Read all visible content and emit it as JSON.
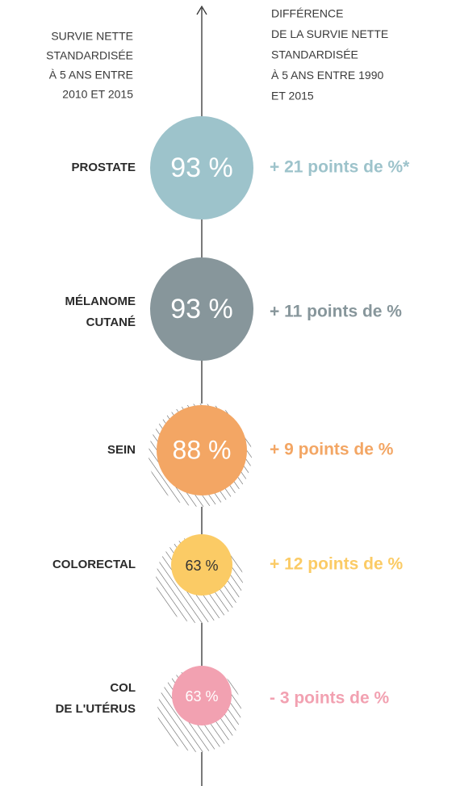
{
  "header": {
    "left": [
      "SURVIE NETTE",
      "STANDARDISÉE",
      "À 5 ANS ENTRE",
      "2010 ET 2015"
    ],
    "right": [
      "DIFFÉRENCE",
      "DE LA SURVIE NETTE",
      "STANDARDISÉE",
      "À 5 ANS ENTRE 1990",
      "ET 2015"
    ]
  },
  "items": [
    {
      "label": [
        "PROSTATE"
      ],
      "survival": "93 %",
      "difference": "+ 21 points de %*",
      "color": "#9dc3cb",
      "text_color": "#ffffff",
      "hatched": false
    },
    {
      "label": [
        "MÉLANOME",
        "CUTANÉ"
      ],
      "survival": "93 %",
      "difference": "+ 11 points de %",
      "color": "#87969b",
      "text_color": "#ffffff",
      "hatched": false
    },
    {
      "label": [
        "SEIN"
      ],
      "survival": "88 %",
      "difference": "+ 9 points de %",
      "color": "#f3a664",
      "text_color": "#ffffff",
      "hatched": true
    },
    {
      "label": [
        "COLORECTAL"
      ],
      "survival": "63 %",
      "difference": "+ 12 points de %",
      "color": "#fbcb65",
      "text_color": "#333333",
      "hatched": true
    },
    {
      "label": [
        "COL",
        "DE L'UTÉRUS"
      ],
      "survival": "63 %",
      "difference": "- 3 points de %",
      "color": "#f2a1b1",
      "text_color": "#ffffff",
      "hatched": true
    }
  ]
}
